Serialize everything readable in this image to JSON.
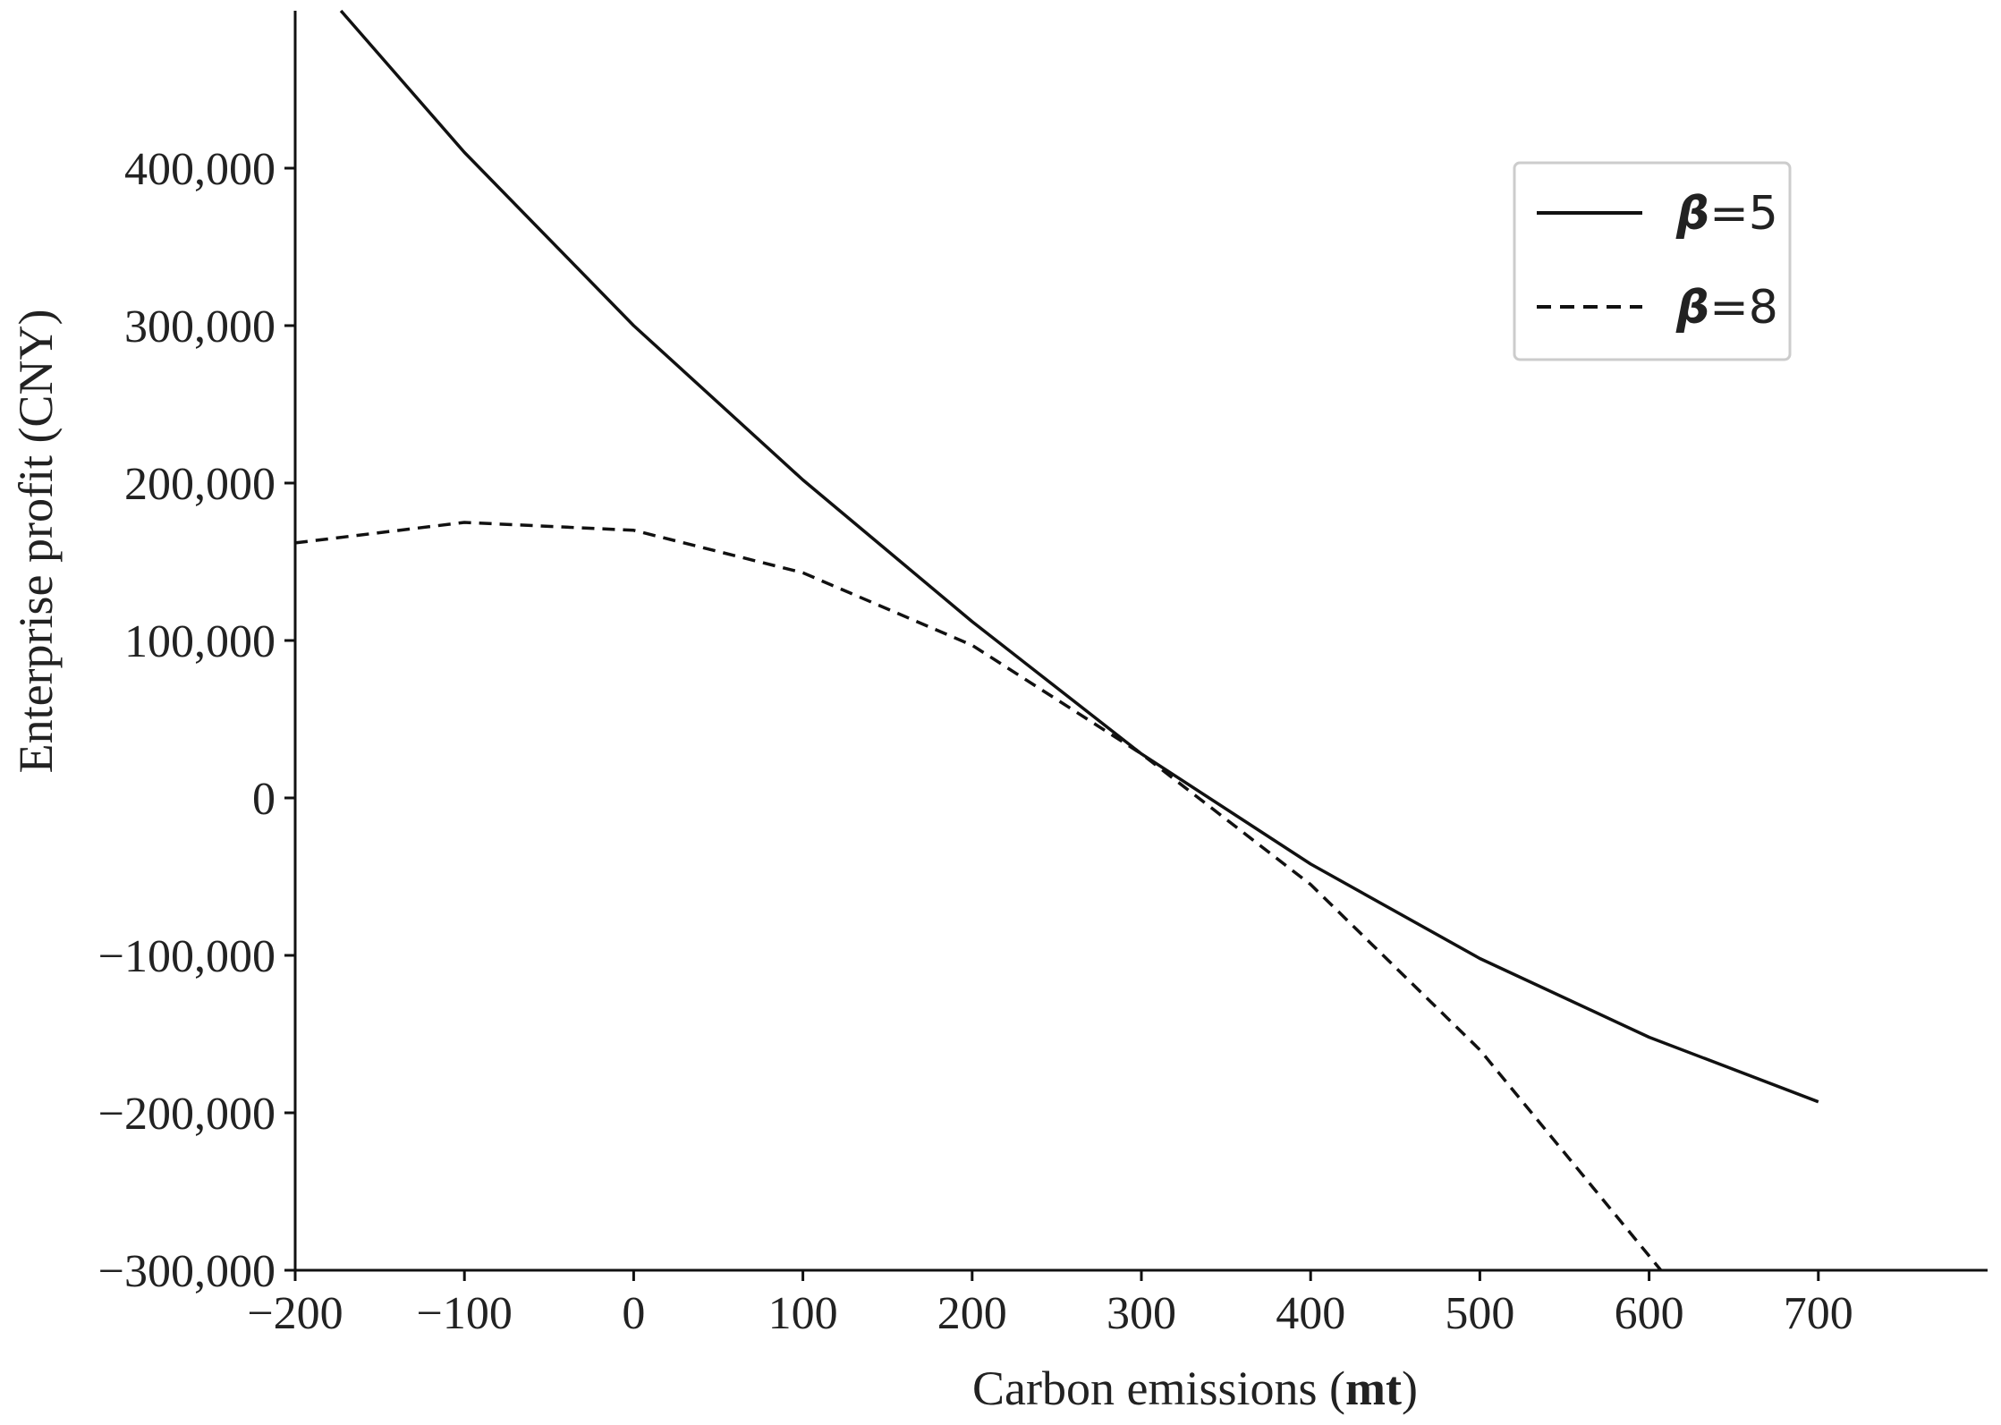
{
  "chart_data": {
    "type": "line",
    "xlabel": "Carbon emissions",
    "xlabel_unit": "mt",
    "ylabel": "Enterprise profit (CNY)",
    "xlim": [
      -200,
      800
    ],
    "ylim": [
      -300000,
      500000
    ],
    "x_ticks": [
      -200,
      -100,
      0,
      100,
      200,
      300,
      400,
      500,
      600,
      700
    ],
    "x_tick_labels": [
      "−200",
      "−100",
      "0",
      "100",
      "200",
      "300",
      "400",
      "500",
      "600",
      "700"
    ],
    "y_ticks": [
      -300000,
      -200000,
      -100000,
      0,
      100000,
      200000,
      300000,
      400000
    ],
    "y_tick_labels": [
      "−300,000",
      "−200,000",
      "−100,000",
      "0",
      "100,000",
      "200,000",
      "300,000",
      "400,000"
    ],
    "grid": false,
    "legend_position": "top-right",
    "series": [
      {
        "name": "=5",
        "name_symbol": "β",
        "style": "solid",
        "color": "#111111",
        "points": [
          [
            -173,
            500000
          ],
          [
            -100,
            410000
          ],
          [
            0,
            300000
          ],
          [
            100,
            202000
          ],
          [
            200,
            112000
          ],
          [
            300,
            28000
          ],
          [
            400,
            -42000
          ],
          [
            500,
            -102000
          ],
          [
            600,
            -152000
          ],
          [
            700,
            -193000
          ]
        ]
      },
      {
        "name": "=8",
        "name_symbol": "β",
        "style": "dashed",
        "color": "#111111",
        "points": [
          [
            -200,
            162000
          ],
          [
            -100,
            175000
          ],
          [
            0,
            170000
          ],
          [
            100,
            143000
          ],
          [
            200,
            97000
          ],
          [
            300,
            28000
          ],
          [
            400,
            -55000
          ],
          [
            500,
            -160000
          ],
          [
            607,
            -300000
          ]
        ]
      }
    ]
  }
}
